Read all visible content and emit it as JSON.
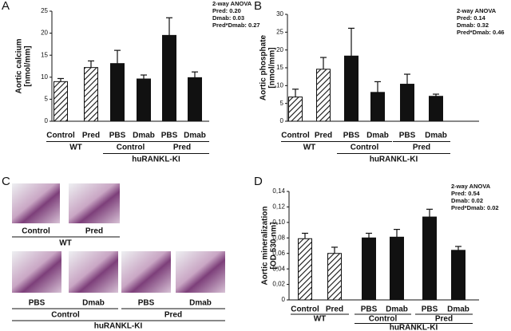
{
  "chart_data": [
    {
      "type": "bar",
      "panel_label": "A",
      "ylabel": [
        "Aortic calcium",
        "[nmol/mm]"
      ],
      "categories": [
        "Control",
        "Pred",
        "PBS",
        "Dmab",
        "PBS",
        "Dmab"
      ],
      "values": [
        9,
        12.2,
        13.1,
        9.6,
        19.5,
        9.9
      ],
      "errors": [
        0.7,
        1.5,
        3,
        0.9,
        4,
        1.3
      ],
      "fills": [
        "hatch",
        "hatch",
        "#111111",
        "#111111",
        "#111111",
        "#111111"
      ],
      "groups": [
        "Control",
        "Pred"
      ],
      "outer_groups": [
        "WT",
        "huRANKL-KI"
      ],
      "annotation": [
        "2-way ANOVA",
        "Pred: 0.20",
        "Dmab: 0.03",
        "Pred*Dmab: 0.27"
      ],
      "ylim": [
        0,
        25
      ],
      "yticks": [
        0,
        5,
        10,
        15,
        20,
        25
      ]
    },
    {
      "type": "bar",
      "panel_label": "B",
      "ylabel": [
        "Aortic phosphate",
        "[nmol/mm]"
      ],
      "categories": [
        "Control",
        "Pred",
        "PBS",
        "Dmab",
        "PBS",
        "Dmab"
      ],
      "values": [
        6.8,
        14.6,
        18.3,
        8.1,
        10.4,
        7
      ],
      "errors": [
        2.2,
        3.3,
        7.8,
        3,
        2.8,
        0.6
      ],
      "fills": [
        "hatch",
        "hatch",
        "#111111",
        "#111111",
        "#111111",
        "#111111"
      ],
      "groups": [
        "Control",
        "Pred"
      ],
      "outer_groups": [
        "WT",
        "huRANKL-KI"
      ],
      "annotation": [
        "2-way ANOVA",
        "Pred: 0.14",
        "Dmab: 0.32",
        "Pred*Dmab: 0.46"
      ],
      "ylim": [
        0,
        30
      ],
      "yticks": [
        0,
        5,
        10,
        15,
        20,
        25,
        30
      ]
    },
    {
      "type": "bar",
      "panel_label": "D",
      "ylabel": [
        "Aortic mineralization",
        "[OD 530 nm]"
      ],
      "categories": [
        "Control",
        "Pred",
        "PBS",
        "Dmab",
        "PBS",
        "Dmab"
      ],
      "values": [
        0.079,
        0.06,
        0.08,
        0.081,
        0.107,
        0.064
      ],
      "errors": [
        0.007,
        0.008,
        0.006,
        0.01,
        0.01,
        0.005
      ],
      "fills": [
        "hatch",
        "hatch",
        "#111111",
        "#111111",
        "#111111",
        "#111111"
      ],
      "groups": [
        "Control",
        "Pred"
      ],
      "outer_groups": [
        "WT",
        "huRANKL-KI"
      ],
      "annotation": [
        "2-way ANOVA",
        "Pred: 0.54",
        "Dmab: 0.02",
        "Pred*Dmab: 0.02"
      ],
      "ylim": [
        0,
        0.14
      ],
      "yticks": [
        0,
        {
          "value": 0.02,
          "label": "0,02"
        },
        {
          "value": 0.04,
          "label": "0,04"
        },
        {
          "value": 0.06,
          "label": "0,06"
        },
        {
          "value": 0.08,
          "label": "0,08"
        },
        {
          "value": 0.1,
          "label": "0,10"
        },
        {
          "value": 0.12,
          "label": "0,12"
        },
        {
          "value": 0.14,
          "label": "0,14"
        }
      ]
    }
  ],
  "panel_c": {
    "panel_label": "C",
    "top_images": [
      "Control",
      "Pred"
    ],
    "top_group": "WT",
    "bottom_images": [
      "PBS",
      "Dmab",
      "PBS",
      "Dmab"
    ],
    "bottom_groups": [
      "Control",
      "Pred"
    ],
    "bottom_outer": "huRANKL-KI"
  }
}
